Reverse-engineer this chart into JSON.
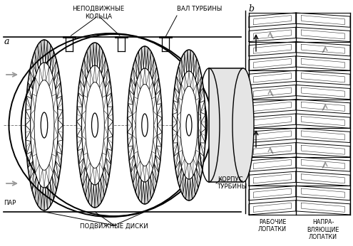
{
  "bg_color": "#ffffff",
  "line_color": "#000000",
  "gray_color": "#999999",
  "label_a": "a",
  "label_b": "b",
  "label_par": "ПАР",
  "label_rings": "НЕПОДВИЖНЫЕ\nКОЛЬЦА",
  "label_shaft": "ВАЛ ТУРБИНЫ",
  "label_discs": "ПОДВИЖНЫЕ ДИСКИ",
  "label_korpus": "КОРПУС\nТУРБИНЫ",
  "label_rabochie": "РАБОЧИЕ\nЛОПАТКИ",
  "label_naprav": "НАПРА-\nВЛЯЮЩИЕ\nЛОПАТКИ",
  "figsize": [
    4.95,
    3.46
  ],
  "dpi": 100
}
